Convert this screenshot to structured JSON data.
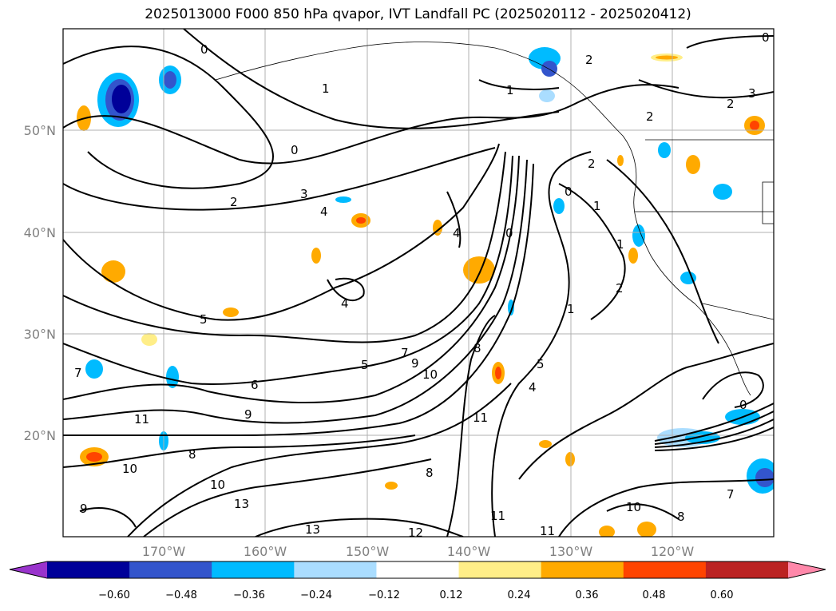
{
  "title": "2025013000 F000 850 hPa qvapor, IVT Landfall PC (2025020112 - 2025020412)",
  "map": {
    "lat_ticks": [
      "50°N",
      "40°N",
      "30°N",
      "20°N"
    ],
    "lon_ticks": [
      "170°W",
      "160°W",
      "150°W",
      "140°W",
      "130°W",
      "120°W"
    ],
    "contour_labels": [
      "0",
      "1",
      "2",
      "3",
      "4",
      "5",
      "6",
      "7",
      "8",
      "9",
      "10",
      "11",
      "12",
      "13"
    ]
  },
  "colorbar": {
    "ticks": [
      "−0.60",
      "−0.48",
      "−0.36",
      "−0.24",
      "−0.12",
      "0.12",
      "0.24",
      "0.36",
      "0.48",
      "0.60"
    ],
    "colors": [
      "#9933cc",
      "#000099",
      "#3355cc",
      "#00bbff",
      "#aaddff",
      "#ffffff",
      "#ffee88",
      "#ffaa00",
      "#ff4400",
      "#bb2222",
      "#ff88aa"
    ]
  }
}
